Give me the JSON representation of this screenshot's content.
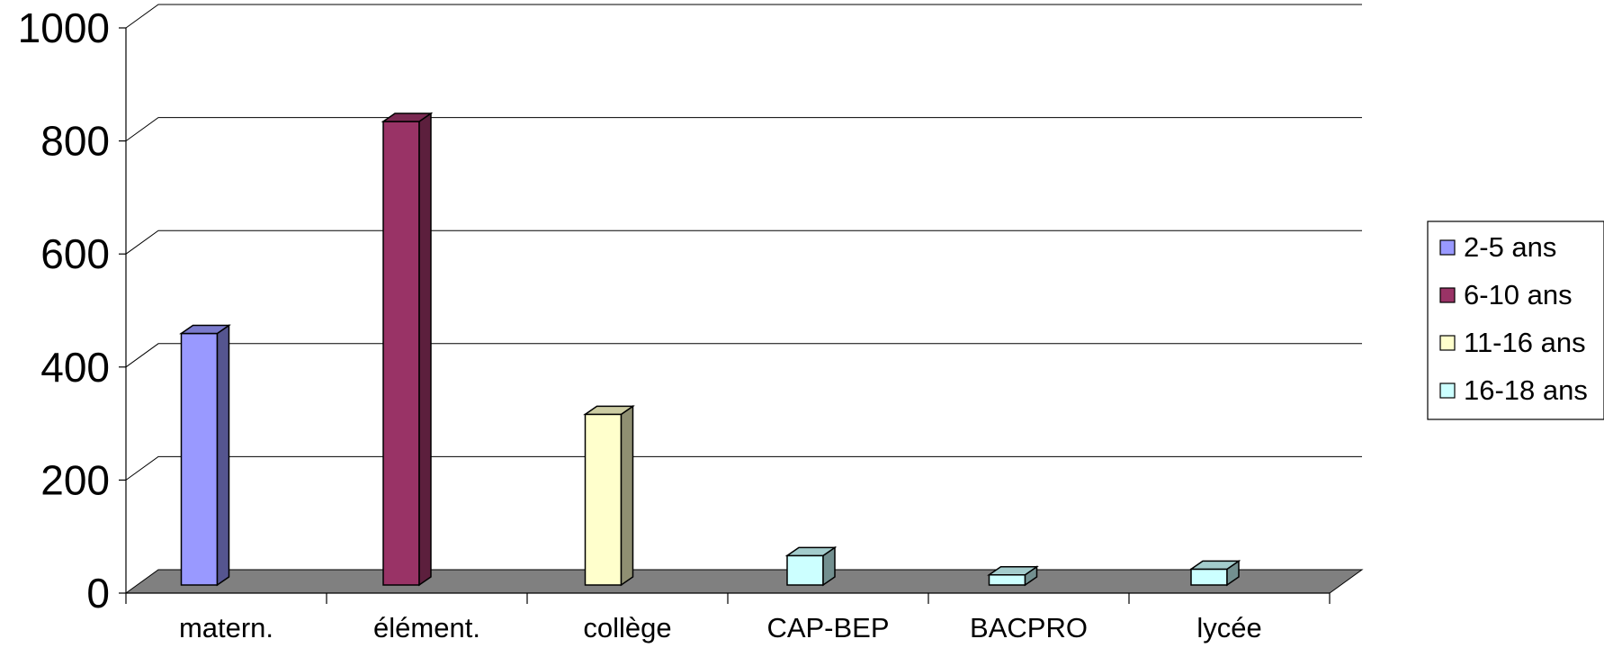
{
  "chart_data": {
    "type": "bar",
    "title": "",
    "xlabel": "",
    "ylabel": "",
    "ylim": [
      0,
      1000
    ],
    "yticks": [
      0,
      200,
      400,
      600,
      800,
      1000
    ],
    "grid": true,
    "legend_position": "right",
    "categories": [
      "matern.",
      "élément.",
      "collège",
      "CAP-BEP",
      "BACPRO",
      "lycée"
    ],
    "series": [
      {
        "name": "2-5 ans",
        "color": "#9999ff",
        "side_color": "#55558f",
        "top_color": "#7a7acc",
        "values": [
          445,
          null,
          null,
          null,
          null,
          null
        ]
      },
      {
        "name": "6-10 ans",
        "color": "#993366",
        "side_color": "#5c1f3d",
        "top_color": "#7a2952",
        "values": [
          null,
          820,
          null,
          null,
          null,
          null
        ]
      },
      {
        "name": "11-16 ans",
        "color": "#ffffcc",
        "side_color": "#8f8f72",
        "top_color": "#cccca3",
        "values": [
          null,
          null,
          302,
          null,
          null,
          null
        ]
      },
      {
        "name": "16-18 ans",
        "color": "#ccffff",
        "side_color": "#728f8f",
        "top_color": "#a3cccc",
        "values": [
          null,
          null,
          null,
          52,
          18,
          28
        ]
      }
    ],
    "colors": {
      "floor": "#808080",
      "grid": "#000000",
      "background": "#ffffff"
    }
  }
}
